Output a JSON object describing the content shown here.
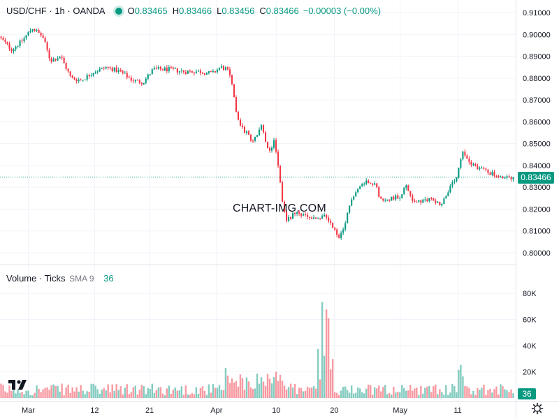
{
  "header": {
    "title": "USD/CHF · 1h · OANDA",
    "o_label": "O",
    "o_value": "0.83465",
    "h_label": "H",
    "h_value": "0.83466",
    "l_label": "L",
    "l_value": "0.83456",
    "c_label": "C",
    "c_value": "0.83466",
    "change": "−0.00003 (−0.00%)"
  },
  "volume_legend": {
    "title": "Volume · Ticks",
    "sma": "SMA 9",
    "value": "36"
  },
  "watermark": "CHART-IMG.COM",
  "price_tag": "0.83466",
  "volume_tag": "36",
  "colors": {
    "up": "#089981",
    "down": "#f23645",
    "grid": "#f0f3fa",
    "text": "#131722"
  },
  "icons": {
    "logo": "tradingview-logo-icon",
    "settings": "gear-icon"
  },
  "chart_data": {
    "type": "candlestick",
    "price_axis": {
      "ylim": [
        0.7965,
        0.9115
      ],
      "ticks": [
        "0.91000",
        "0.90000",
        "0.89000",
        "0.88000",
        "0.87000",
        "0.86000",
        "0.85000",
        "0.84000",
        "0.83000",
        "0.82000",
        "0.81000",
        "0.80000"
      ]
    },
    "volume_axis": {
      "ylim": [
        0,
        96000
      ],
      "ticks": [
        "80K",
        "60K",
        "40K",
        "20K"
      ]
    },
    "x_ticks": [
      {
        "label": "Mar",
        "t": 0.055
      },
      {
        "label": "12",
        "t": 0.184
      },
      {
        "label": "21",
        "t": 0.291
      },
      {
        "label": "Apr",
        "t": 0.421
      },
      {
        "label": "10",
        "t": 0.537
      },
      {
        "label": "20",
        "t": 0.65
      },
      {
        "label": "May",
        "t": 0.778
      },
      {
        "label": "11",
        "t": 0.89
      }
    ],
    "price_path": [
      [
        0.0,
        0.899
      ],
      [
        0.025,
        0.893
      ],
      [
        0.045,
        0.897
      ],
      [
        0.065,
        0.903
      ],
      [
        0.085,
        0.899
      ],
      [
        0.1,
        0.888
      ],
      [
        0.12,
        0.89
      ],
      [
        0.14,
        0.88
      ],
      [
        0.16,
        0.879
      ],
      [
        0.185,
        0.883
      ],
      [
        0.21,
        0.885
      ],
      [
        0.235,
        0.883
      ],
      [
        0.26,
        0.879
      ],
      [
        0.28,
        0.878
      ],
      [
        0.3,
        0.884
      ],
      [
        0.33,
        0.884
      ],
      [
        0.36,
        0.883
      ],
      [
        0.39,
        0.883
      ],
      [
        0.415,
        0.882
      ],
      [
        0.43,
        0.885
      ],
      [
        0.445,
        0.884
      ],
      [
        0.455,
        0.875
      ],
      [
        0.465,
        0.86
      ],
      [
        0.48,
        0.855
      ],
      [
        0.495,
        0.851
      ],
      [
        0.51,
        0.858
      ],
      [
        0.525,
        0.845
      ],
      [
        0.535,
        0.852
      ],
      [
        0.545,
        0.838
      ],
      [
        0.55,
        0.825
      ],
      [
        0.558,
        0.815
      ],
      [
        0.575,
        0.818
      ],
      [
        0.595,
        0.817
      ],
      [
        0.615,
        0.815
      ],
      [
        0.635,
        0.817
      ],
      [
        0.65,
        0.812
      ],
      [
        0.66,
        0.806
      ],
      [
        0.67,
        0.81
      ],
      [
        0.685,
        0.825
      ],
      [
        0.7,
        0.83
      ],
      [
        0.715,
        0.833
      ],
      [
        0.73,
        0.832
      ],
      [
        0.745,
        0.823
      ],
      [
        0.76,
        0.825
      ],
      [
        0.78,
        0.826
      ],
      [
        0.79,
        0.831
      ],
      [
        0.805,
        0.824
      ],
      [
        0.82,
        0.823
      ],
      [
        0.84,
        0.825
      ],
      [
        0.86,
        0.822
      ],
      [
        0.875,
        0.829
      ],
      [
        0.89,
        0.834
      ],
      [
        0.9,
        0.846
      ],
      [
        0.915,
        0.842
      ],
      [
        0.93,
        0.839
      ],
      [
        0.945,
        0.838
      ],
      [
        0.96,
        0.836
      ],
      [
        0.975,
        0.834
      ],
      [
        1.0,
        0.83466
      ]
    ],
    "last_price": 0.83466,
    "last_volume": 36
  }
}
